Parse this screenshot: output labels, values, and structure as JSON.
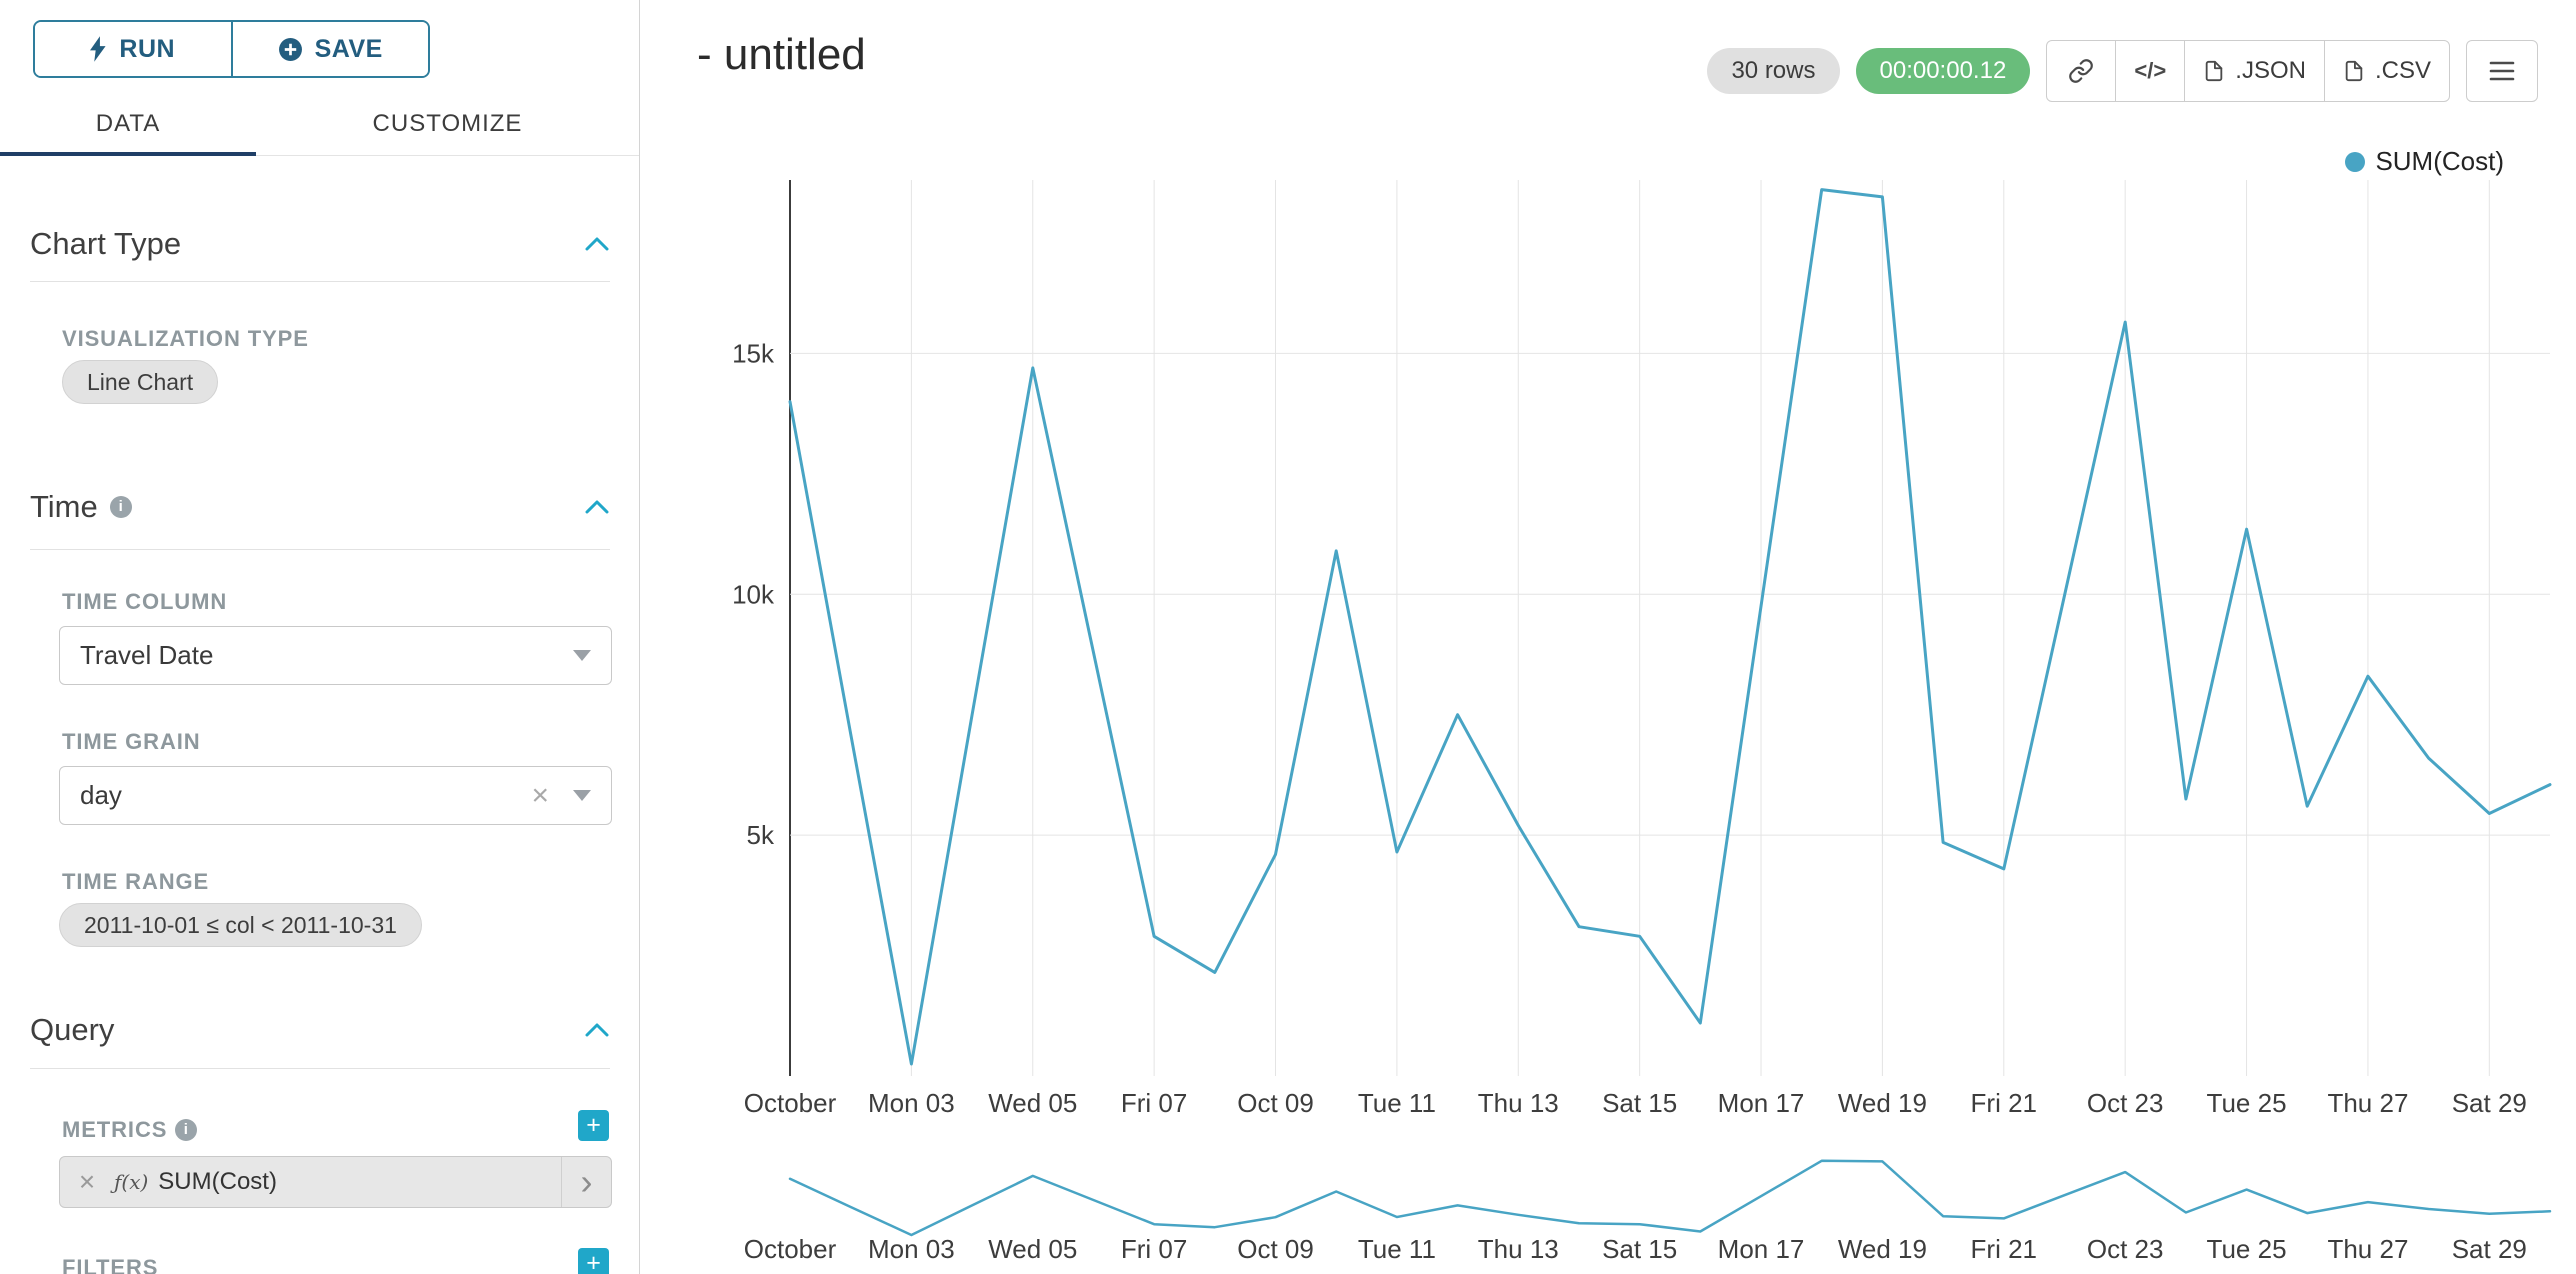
{
  "toolbar": {
    "run_label": "RUN",
    "save_label": "SAVE"
  },
  "tabs": {
    "data": "DATA",
    "customize": "CUSTOMIZE"
  },
  "panel": {
    "chart_type": {
      "title": "Chart Type",
      "viz_label": "VISUALIZATION TYPE",
      "viz_value": "Line Chart"
    },
    "time": {
      "title": "Time",
      "column_label": "TIME COLUMN",
      "column_value": "Travel Date",
      "grain_label": "TIME GRAIN",
      "grain_value": "day",
      "range_label": "TIME RANGE",
      "range_value": "2011-10-01 ≤ col < 2011-10-31"
    },
    "query": {
      "title": "Query",
      "metrics_label": "METRICS",
      "metric_fx": "ƒ(x)",
      "metric_value": "SUM(Cost)",
      "filters_label": "FILTERS"
    }
  },
  "header": {
    "title": "- untitled",
    "rows_badge": "30 rows",
    "timer_badge": "00:00:00.12",
    "code_glyph": "</>",
    "json_label": ".JSON",
    "csv_label": ".CSV"
  },
  "legend": {
    "label": "SUM(Cost)"
  },
  "chart_data": {
    "type": "line",
    "title": "- untitled",
    "series": [
      {
        "name": "SUM(Cost)",
        "values": [
          14000,
          7100,
          250,
          7500,
          14700,
          8800,
          2900,
          2150,
          4600,
          10900,
          4650,
          7500,
          5200,
          3100,
          2900,
          1100,
          9750,
          18400,
          18250,
          4850,
          4300,
          9975,
          15650,
          5750,
          11350,
          5600,
          8300,
          6600,
          5450,
          6050
        ]
      }
    ],
    "x_tick_labels": [
      "October",
      "Mon 03",
      "Wed 05",
      "Fri 07",
      "Oct 09",
      "Tue 11",
      "Thu 13",
      "Sat 15",
      "Mon 17",
      "Wed 19",
      "Fri 21",
      "Oct 23",
      "Tue 25",
      "Thu 27",
      "Sat 29"
    ],
    "x_unit": "day, 2011-10-01 through 2011-10-30",
    "xlabel": "",
    "ylabel": "",
    "y_ticks": [
      {
        "value": 5000,
        "label": "5k"
      },
      {
        "value": 10000,
        "label": "10k"
      },
      {
        "value": 15000,
        "label": "15k"
      }
    ],
    "ylim": [
      0,
      18600
    ],
    "grid": true,
    "legend_position": "top-right",
    "line_color": "#48a4c4",
    "has_brush_minimap": true
  }
}
